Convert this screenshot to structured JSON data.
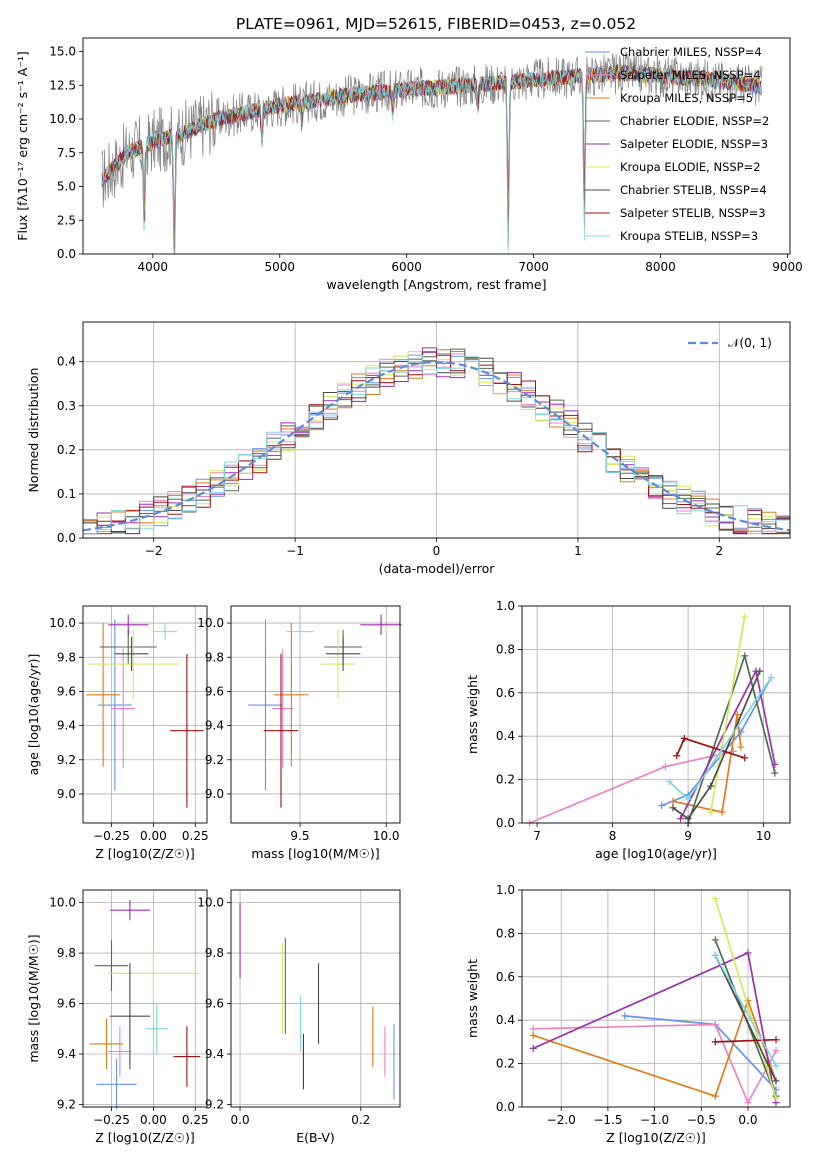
{
  "figure_title": "PLATE=0961, MJD=52615, FIBERID=0453, z=0.052",
  "series_colors": [
    "#6495ed",
    "#ee82c9",
    "#e07b1a",
    "#4f6e4f",
    "#9b2fae",
    "#d6e85a",
    "#4a4a4a",
    "#a01010",
    "#7fd6e3"
  ],
  "chart_data": [
    {
      "id": "spectrum",
      "type": "line",
      "title": "PLATE=0961, MJD=52615, FIBERID=0453, z=0.052",
      "xlabel": "wavelength [Angstrom, rest frame]",
      "ylabel": "Flux [fλ10⁻¹⁷ erg cm⁻² s⁻¹ A⁻¹]",
      "xlim": [
        3450,
        9020
      ],
      "ylim": [
        0,
        16
      ],
      "xticks": [
        4000,
        5000,
        6000,
        7000,
        8000,
        9000
      ],
      "yticks": [
        0.0,
        2.5,
        5.0,
        7.5,
        10.0,
        12.5,
        15.0
      ],
      "legend_position": "right",
      "legend": [
        "Chabrier MILES, NSSP=4",
        "Salpeter MILES, NSSP=4",
        "Kroupa MILES, NSSP=5",
        "Chabrier ELODIE, NSSP=2",
        "Salpeter ELODIE, NSSP=3",
        "Kroupa ELODIE, NSSP=2",
        "Chabrier STELIB, NSSP=4",
        "Salpeter STELIB, NSSP=3",
        "Kroupa STELIB, NSSP=3"
      ],
      "continuum": [
        [
          3600,
          5.5
        ],
        [
          3800,
          7.5
        ],
        [
          4000,
          8.3
        ],
        [
          4200,
          8.8
        ],
        [
          4500,
          10.0
        ],
        [
          5000,
          11.0
        ],
        [
          5500,
          11.7
        ],
        [
          6000,
          12.2
        ],
        [
          6500,
          12.5
        ],
        [
          7000,
          12.9
        ],
        [
          7400,
          13.2
        ],
        [
          7700,
          13.4
        ],
        [
          8000,
          13.2
        ],
        [
          8400,
          12.9
        ],
        [
          8800,
          12.4
        ]
      ],
      "absorption_lines": [
        [
          3933,
          7.5
        ],
        [
          4170,
          11.5
        ],
        [
          4861,
          2.5
        ],
        [
          5175,
          2.0
        ],
        [
          5890,
          2.0
        ],
        [
          6563,
          2.0
        ],
        [
          6800,
          14.0
        ],
        [
          7400,
          13.5
        ]
      ],
      "grid": false
    },
    {
      "id": "residuals",
      "type": "histogram",
      "xlabel": "(data-model)/error",
      "ylabel": "Normed distribution",
      "xlim": [
        -2.5,
        2.5
      ],
      "ylim": [
        0,
        0.49
      ],
      "xticks": [
        -2,
        -1,
        0,
        1,
        2
      ],
      "yticks": [
        0.0,
        0.1,
        0.2,
        0.3,
        0.4
      ],
      "bin_width": 0.1,
      "legend": [
        "𝒩(0, 1)"
      ],
      "legend_position": "top-right",
      "grid": true
    },
    {
      "id": "age-vs-Z",
      "type": "errorbar",
      "xlabel": "Z [log10(Z/Z☉)]",
      "ylabel": "age  [log10(age/yr)]",
      "xlim": [
        -0.42,
        0.32
      ],
      "ylim": [
        8.83,
        10.1
      ],
      "xticks": [
        -0.25,
        0.0,
        0.25
      ],
      "yticks": [
        9.0,
        9.2,
        9.4,
        9.6,
        9.8,
        10.0
      ],
      "points": [
        {
          "series": 0,
          "x": -0.23,
          "y": 9.52,
          "xerr": 0.1,
          "yerr": 0.5
        },
        {
          "series": 1,
          "x": -0.18,
          "y": 9.5,
          "xerr": 0.07,
          "yerr": 0.35
        },
        {
          "series": 2,
          "x": -0.3,
          "y": 9.58,
          "xerr": 0.1,
          "yerr": 0.42
        },
        {
          "series": 3,
          "x": -0.15,
          "y": 9.86,
          "xerr": 0.17,
          "yerr": 0.1
        },
        {
          "series": 4,
          "x": -0.15,
          "y": 9.99,
          "xerr": 0.12,
          "yerr": 0.06
        },
        {
          "series": 5,
          "x": -0.12,
          "y": 9.76,
          "xerr": 0.27,
          "yerr": 0.2
        },
        {
          "series": 6,
          "x": -0.13,
          "y": 9.82,
          "xerr": 0.1,
          "yerr": 0.1
        },
        {
          "series": 7,
          "x": 0.2,
          "y": 9.37,
          "xerr": 0.1,
          "yerr": 0.45
        },
        {
          "series": 8,
          "x": 0.07,
          "y": 9.95,
          "xerr": 0.07,
          "yerr": 0.05
        }
      ],
      "grid": true
    },
    {
      "id": "age-vs-mass",
      "type": "errorbar",
      "xlabel": "mass [log10(M/M☉)]",
      "ylabel": "",
      "xlim": [
        9.1,
        10.08
      ],
      "ylim": [
        8.83,
        10.1
      ],
      "xticks": [
        9.5,
        10.0
      ],
      "yticks": [
        9.0,
        9.2,
        9.4,
        9.6,
        9.8,
        10.0
      ],
      "points": [
        {
          "series": 0,
          "x": 9.3,
          "y": 9.52,
          "xerr": 0.1,
          "yerr": 0.5
        },
        {
          "series": 1,
          "x": 9.4,
          "y": 9.5,
          "xerr": 0.06,
          "yerr": 0.35
        },
        {
          "series": 2,
          "x": 9.45,
          "y": 9.58,
          "xerr": 0.1,
          "yerr": 0.42
        },
        {
          "series": 3,
          "x": 9.75,
          "y": 9.86,
          "xerr": 0.11,
          "yerr": 0.1
        },
        {
          "series": 4,
          "x": 9.97,
          "y": 9.99,
          "xerr": 0.12,
          "yerr": 0.06
        },
        {
          "series": 5,
          "x": 9.72,
          "y": 9.76,
          "xerr": 0.1,
          "yerr": 0.2
        },
        {
          "series": 6,
          "x": 9.75,
          "y": 9.82,
          "xerr": 0.1,
          "yerr": 0.1
        },
        {
          "series": 7,
          "x": 9.39,
          "y": 9.37,
          "xerr": 0.1,
          "yerr": 0.45
        },
        {
          "series": 8,
          "x": 9.5,
          "y": 9.95,
          "xerr": 0.08,
          "yerr": 0.05
        }
      ],
      "grid": true
    },
    {
      "id": "weight-vs-age",
      "type": "line",
      "xlabel": "age  [log10(age/yr)]",
      "ylabel": "mass weight",
      "xlim": [
        6.8,
        10.35
      ],
      "ylim": [
        0,
        1.0
      ],
      "xticks": [
        7,
        8,
        9,
        10
      ],
      "yticks": [
        0.0,
        0.2,
        0.4,
        0.6,
        0.8,
        1.0
      ],
      "series": [
        {
          "points": [
            [
              8.65,
              0.08
            ],
            [
              9.0,
              0.13
            ],
            [
              9.7,
              0.42
            ],
            [
              10.1,
              0.67
            ]
          ]
        },
        {
          "points": [
            [
              6.9,
              0.0
            ],
            [
              8.7,
              0.26
            ],
            [
              9.6,
              0.33
            ]
          ]
        },
        {
          "points": [
            [
              8.8,
              0.1
            ],
            [
              9.45,
              0.05
            ],
            [
              9.65,
              0.5
            ],
            [
              9.7,
              0.35
            ]
          ]
        },
        {
          "points": [
            [
              9.0,
              0.0
            ],
            [
              9.75,
              0.77
            ],
            [
              10.15,
              0.23
            ]
          ]
        },
        {
          "points": [
            [
              8.9,
              0.02
            ],
            [
              9.9,
              0.7
            ],
            [
              10.15,
              0.27
            ]
          ]
        },
        {
          "points": [
            [
              9.3,
              0.05
            ],
            [
              9.75,
              0.95
            ]
          ]
        },
        {
          "points": [
            [
              8.8,
              0.07
            ],
            [
              9.0,
              0.02
            ],
            [
              9.3,
              0.17
            ],
            [
              9.95,
              0.7
            ]
          ]
        },
        {
          "points": [
            [
              8.85,
              0.31
            ],
            [
              8.95,
              0.39
            ],
            [
              9.75,
              0.3
            ]
          ]
        },
        {
          "points": [
            [
              8.75,
              0.19
            ],
            [
              9.0,
              0.11
            ],
            [
              10.1,
              0.67
            ]
          ]
        }
      ],
      "grid": true
    },
    {
      "id": "mass-vs-Z",
      "type": "errorbar",
      "xlabel": "Z [log10(Z/Z☉)]",
      "ylabel": "mass [log10(M/M☉)]",
      "xlim": [
        -0.42,
        0.32
      ],
      "ylim": [
        9.19,
        10.05
      ],
      "xticks": [
        -0.25,
        0.0,
        0.25
      ],
      "yticks": [
        9.2,
        9.4,
        9.6,
        9.8,
        10.0
      ],
      "points": [
        {
          "series": 0,
          "x": -0.22,
          "y": 9.28,
          "xerr": 0.12,
          "yerr": 0.1
        },
        {
          "series": 1,
          "x": -0.2,
          "y": 9.41,
          "xerr": 0.07,
          "yerr": 0.1
        },
        {
          "series": 2,
          "x": -0.28,
          "y": 9.44,
          "xerr": 0.1,
          "yerr": 0.1
        },
        {
          "series": 3,
          "x": -0.25,
          "y": 9.75,
          "xerr": 0.1,
          "yerr": 0.1
        },
        {
          "series": 4,
          "x": -0.14,
          "y": 9.97,
          "xerr": 0.12,
          "yerr": 0.04
        },
        {
          "series": 5,
          "x": 0.0,
          "y": 9.72,
          "xerr": 0.27,
          "yerr": 0.1
        },
        {
          "series": 6,
          "x": -0.14,
          "y": 9.55,
          "xerr": 0.12,
          "yerr": 0.21
        },
        {
          "series": 7,
          "x": 0.2,
          "y": 9.39,
          "xerr": 0.08,
          "yerr": 0.12
        },
        {
          "series": 8,
          "x": 0.02,
          "y": 9.5,
          "xerr": 0.07,
          "yerr": 0.1
        }
      ],
      "grid": true
    },
    {
      "id": "mass-vs-EBV",
      "type": "errorbar",
      "xlabel": "E(B-V)",
      "ylabel": "",
      "xlim": [
        -0.015,
        0.265
      ],
      "ylim": [
        9.19,
        10.05
      ],
      "xticks": [
        0.0,
        0.2
      ],
      "yticks": [
        9.2,
        9.4,
        9.6,
        9.8,
        10.0
      ],
      "points": [
        {
          "series": 0,
          "x": 0.255,
          "y": 9.37,
          "xerr": 0,
          "yerr": 0.15
        },
        {
          "series": 1,
          "x": 0.24,
          "y": 9.41,
          "xerr": 0,
          "yerr": 0.1
        },
        {
          "series": 2,
          "x": 0.22,
          "y": 9.47,
          "xerr": 0,
          "yerr": 0.12
        },
        {
          "series": 3,
          "x": 0.075,
          "y": 9.67,
          "xerr": 0,
          "yerr": 0.19
        },
        {
          "series": 4,
          "x": 0.0,
          "y": 9.85,
          "xerr": 0,
          "yerr": 0.15
        },
        {
          "series": 5,
          "x": 0.07,
          "y": 9.66,
          "xerr": 0,
          "yerr": 0.18
        },
        {
          "series": 6,
          "x": 0.13,
          "y": 9.6,
          "xerr": 0,
          "yerr": 0.16
        },
        {
          "series": 7,
          "x": 0.105,
          "y": 9.37,
          "xerr": 0,
          "yerr": 0.11
        },
        {
          "series": 8,
          "x": 0.1,
          "y": 9.52,
          "xerr": 0,
          "yerr": 0.11
        }
      ],
      "grid": true
    },
    {
      "id": "weight-vs-Z",
      "type": "line",
      "xlabel": "Z [log10(Z/Z☉)]",
      "ylabel": "mass weight",
      "xlim": [
        -2.42,
        0.45
      ],
      "ylim": [
        0,
        1.0
      ],
      "xticks": [
        -2.0,
        -1.5,
        -1.0,
        -0.5,
        0.0
      ],
      "yticks": [
        0.0,
        0.2,
        0.4,
        0.6,
        0.8,
        1.0
      ],
      "series": [
        {
          "points": [
            [
              -1.32,
              0.42
            ],
            [
              -0.35,
              0.38
            ],
            [
              0.3,
              0.08
            ]
          ]
        },
        {
          "points": [
            [
              -2.3,
              0.36
            ],
            [
              -0.35,
              0.38
            ],
            [
              0.0,
              0.02
            ],
            [
              0.3,
              0.26
            ]
          ]
        },
        {
          "points": [
            [
              -2.3,
              0.33
            ],
            [
              -0.35,
              0.05
            ],
            [
              0.0,
              0.49
            ],
            [
              0.3,
              0.12
            ]
          ]
        },
        {
          "points": [
            [
              -0.35,
              0.77
            ],
            [
              0.3,
              0.05
            ]
          ]
        },
        {
          "points": [
            [
              -2.3,
              0.27
            ],
            [
              0.0,
              0.71
            ],
            [
              0.3,
              0.02
            ]
          ]
        },
        {
          "points": [
            [
              -0.35,
              0.96
            ],
            [
              0.3,
              0.04
            ]
          ]
        },
        {
          "points": [
            [
              -0.35,
              0.7
            ],
            [
              0.3,
              0.12
            ]
          ]
        },
        {
          "points": [
            [
              -0.35,
              0.3
            ],
            [
              0.3,
              0.31
            ]
          ]
        },
        {
          "points": [
            [
              -0.35,
              0.7
            ],
            [
              0.3,
              0.19
            ]
          ]
        }
      ],
      "grid": true
    }
  ]
}
